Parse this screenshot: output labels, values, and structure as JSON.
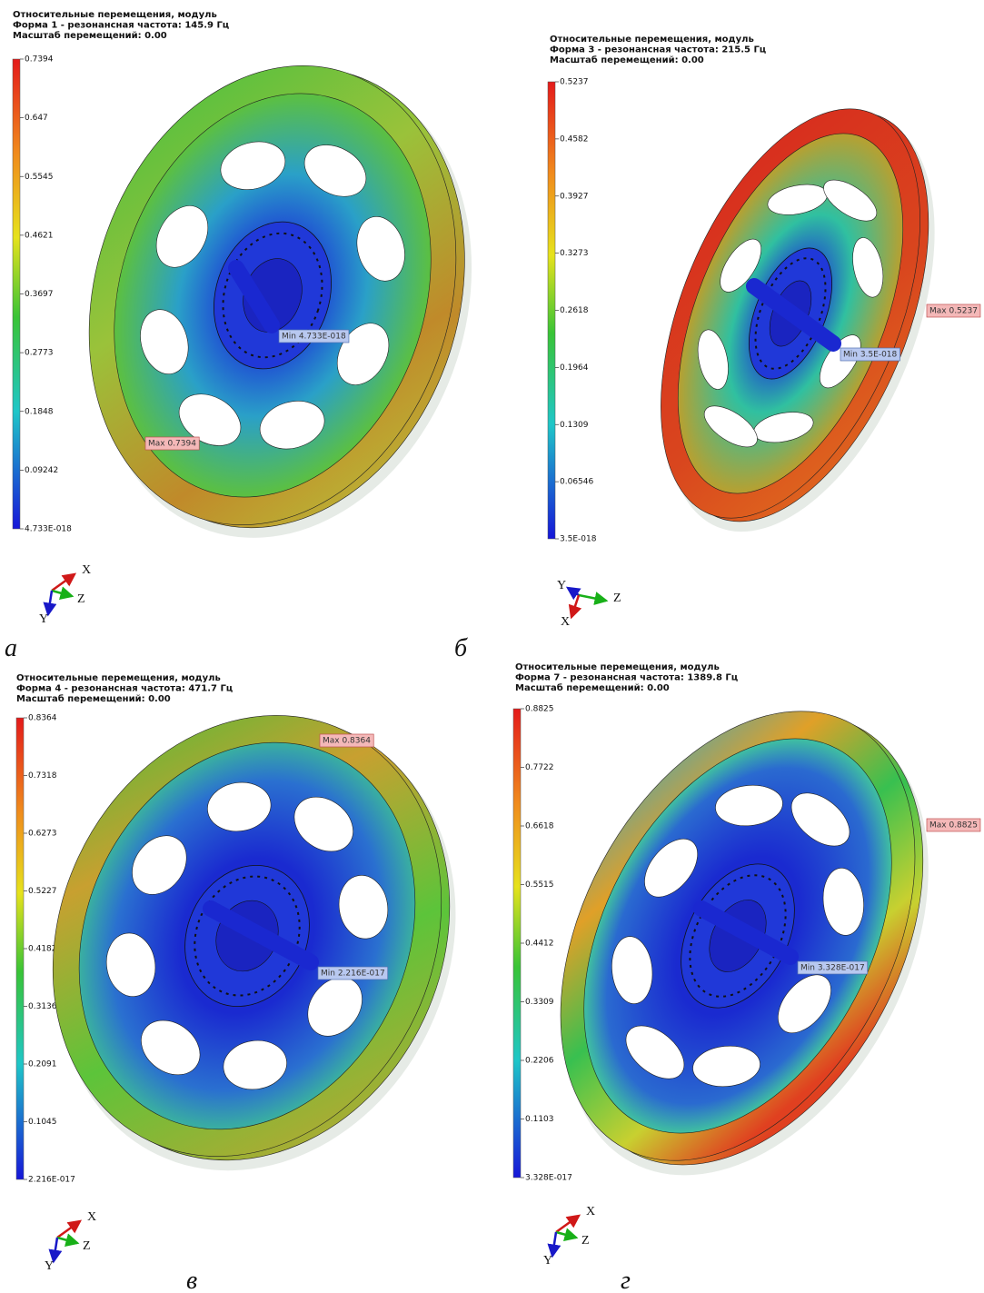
{
  "panels": [
    {
      "header": [
        "Относительные перемещения, модуль",
        "Форма 1 - резонансная частота: 145.9 Гц",
        "Масштаб перемещений: 0.00"
      ],
      "scale": [
        "0.7394",
        "0.647",
        "0.5545",
        "0.4621",
        "0.3697",
        "0.2773",
        "0.1848",
        "0.09242",
        "4.733E-018"
      ],
      "max_label": "Max 0.7394",
      "min_label": "Min 4.733E-018",
      "axes": [
        "X",
        "Z",
        "Y"
      ],
      "caption": "а"
    },
    {
      "header": [
        "Относительные перемещения, модуль",
        "Форма 3 - резонансная частота: 215.5 Гц",
        "Масштаб перемещений: 0.00"
      ],
      "scale": [
        "0.5237",
        "0.4582",
        "0.3927",
        "0.3273",
        "0.2618",
        "0.1964",
        "0.1309",
        "0.06546",
        "3.5E-018"
      ],
      "max_label": "Max 0.5237",
      "min_label": "Min 3.5E-018",
      "axes": [
        "Y",
        "Z",
        "X"
      ],
      "caption": "б"
    },
    {
      "header": [
        "Относительные перемещения, модуль",
        "Форма 4 - резонансная частота: 471.7 Гц",
        "Масштаб перемещений: 0.00"
      ],
      "scale": [
        "0.8364",
        "0.7318",
        "0.6273",
        "0.5227",
        "0.4182",
        "0.3136",
        "0.2091",
        "0.1045",
        "2.216E-017"
      ],
      "max_label": "Max 0.8364",
      "min_label": "Min 2.216E-017",
      "axes": [
        "X",
        "Z",
        "Y"
      ],
      "caption": "в"
    },
    {
      "header": [
        "Относительные перемещения, модуль",
        "Форма 7 - резонансная частота: 1389.8 Гц",
        "Масштаб перемещений: 0.00"
      ],
      "scale": [
        "0.8825",
        "0.7722",
        "0.6618",
        "0.5515",
        "0.4412",
        "0.3309",
        "0.2206",
        "0.1103",
        "3.328E-017"
      ],
      "max_label": "Max 0.8825",
      "min_label": "Min 3.328E-017",
      "axes": [
        "X",
        "Z",
        "Y"
      ],
      "caption": "г"
    }
  ]
}
